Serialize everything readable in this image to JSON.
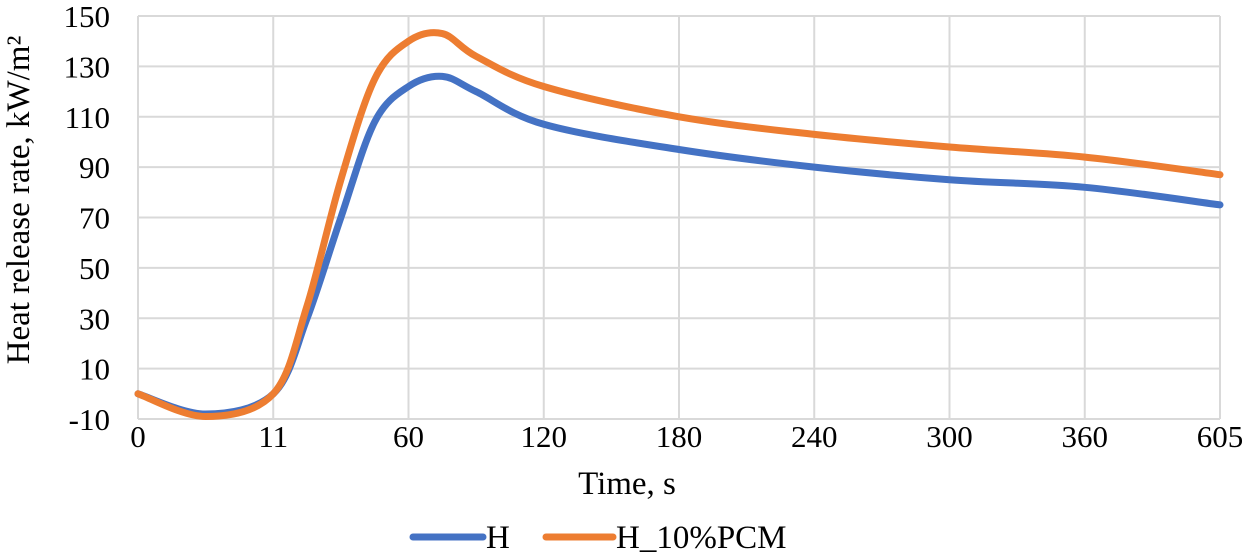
{
  "chart_data": {
    "type": "line",
    "title": "",
    "xlabel": "Time, s",
    "ylabel": "Heat release rate, kW/m²",
    "categories": [
      "0",
      "11",
      "60",
      "120",
      "180",
      "240",
      "300",
      "360",
      "605"
    ],
    "ylim": [
      -10,
      150
    ],
    "yticks": [
      -10,
      10,
      30,
      50,
      70,
      90,
      110,
      130,
      150
    ],
    "grid": true,
    "legend_position": "bottom",
    "series": [
      {
        "name": "H",
        "color": "#4472c4",
        "x": [
          0,
          0.5,
          1,
          1.25,
          1.5,
          1.75,
          2,
          2.25,
          2.5,
          3,
          4,
          5,
          6,
          7,
          8
        ],
        "values": [
          0,
          -8,
          0,
          30,
          70,
          108,
          122,
          126,
          120,
          107,
          97,
          90,
          85,
          82,
          75
        ]
      },
      {
        "name": "H_10%PCM",
        "color": "#ed7d31",
        "x": [
          0,
          0.5,
          1,
          1.25,
          1.5,
          1.75,
          2,
          2.25,
          2.5,
          3,
          4,
          5,
          6,
          7,
          8
        ],
        "values": [
          0,
          -9,
          0,
          35,
          85,
          125,
          140,
          143,
          134,
          122,
          110,
          103,
          98,
          94,
          87
        ]
      }
    ]
  }
}
